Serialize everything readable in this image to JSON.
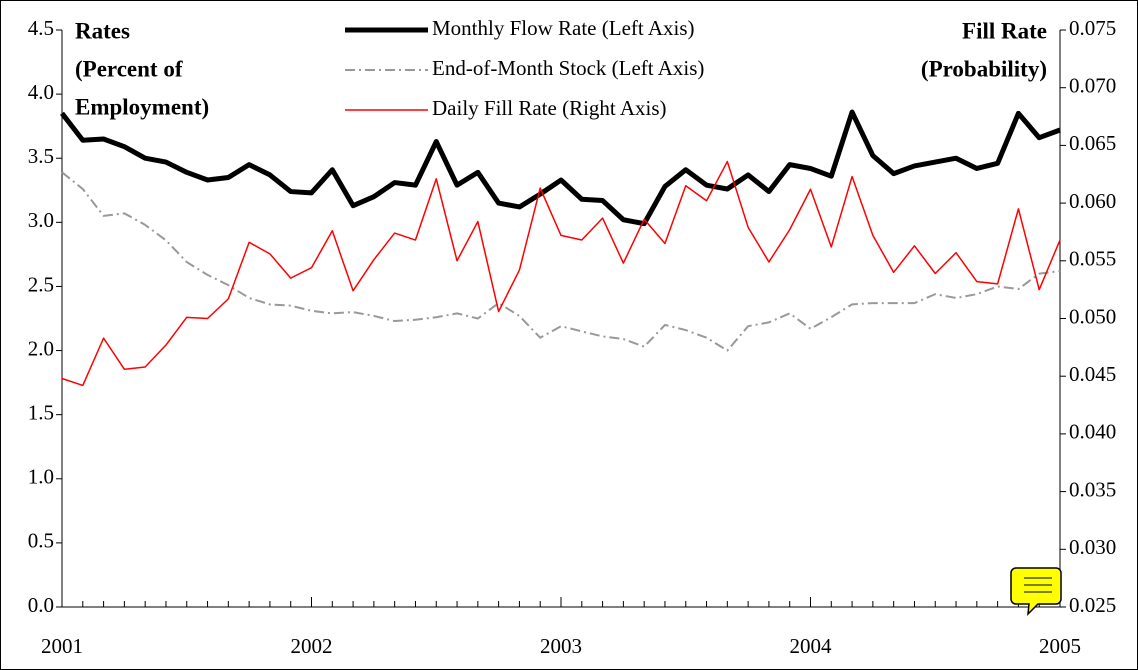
{
  "chart_data": {
    "type": "line",
    "ylabel": [
      "Rates",
      "(Percent of",
      "Employment)"
    ],
    "y2label": [
      "Fill Rate",
      "(Probability)"
    ],
    "categories": [
      "2001",
      null,
      null,
      null,
      null,
      null,
      null,
      null,
      null,
      null,
      null,
      null,
      "2002",
      null,
      null,
      null,
      null,
      null,
      null,
      null,
      null,
      null,
      null,
      null,
      "2003",
      null,
      null,
      null,
      null,
      null,
      null,
      null,
      null,
      null,
      null,
      null,
      "2004",
      null,
      null,
      null,
      null,
      null,
      null,
      null,
      null,
      null,
      null,
      null,
      "2005"
    ],
    "ylim": [
      0,
      4.5
    ],
    "yticks": [
      {
        "value": 0,
        "label": "0.0"
      },
      0.5,
      {
        "value": 1,
        "label": "1.0"
      },
      1.5,
      {
        "value": 2,
        "label": "2.0"
      },
      2.5,
      {
        "value": 3,
        "label": "3.0"
      },
      3.5,
      {
        "value": 4,
        "label": "4.0"
      },
      4.5
    ],
    "y2lim": [
      0.025,
      0.075
    ],
    "y2ticks": [
      0.025,
      {
        "value": 0.03,
        "label": "0.030"
      },
      0.035,
      {
        "value": 0.04,
        "label": "0.040"
      },
      0.045,
      {
        "value": 0.05,
        "label": "0.050"
      },
      0.055,
      {
        "value": 0.06,
        "label": "0.060"
      },
      0.065,
      {
        "value": 0.07,
        "label": "0.070"
      },
      0.075
    ],
    "series": [
      {
        "name": "Monthly Flow Rate (Left Axis)",
        "color": "#000000",
        "style": "solid",
        "width": 5,
        "values": [
          3.85,
          3.64,
          3.65,
          3.59,
          3.5,
          3.47,
          3.39,
          3.33,
          3.35,
          3.45,
          3.37,
          3.24,
          3.23,
          3.41,
          3.13,
          3.2,
          3.31,
          3.29,
          3.63,
          3.29,
          3.39,
          3.15,
          3.12,
          3.22,
          3.33,
          3.18,
          3.17,
          3.02,
          2.99,
          3.28,
          3.41,
          3.29,
          3.26,
          3.37,
          3.24,
          3.45,
          3.42,
          3.36,
          3.86,
          3.52,
          3.38,
          3.44,
          3.47,
          3.5,
          3.42,
          3.46,
          3.85,
          3.66,
          3.72
        ]
      },
      {
        "name": "End-of-Month Stock (Left Axis)",
        "color": "#999999",
        "style": "dashdot",
        "width": 2,
        "values": [
          3.39,
          3.26,
          3.05,
          3.07,
          2.98,
          2.86,
          2.69,
          2.59,
          2.51,
          2.41,
          2.36,
          2.35,
          2.31,
          2.29,
          2.3,
          2.27,
          2.23,
          2.24,
          2.26,
          2.29,
          2.25,
          2.37,
          2.27,
          2.1,
          2.19,
          2.15,
          2.11,
          2.09,
          2.03,
          2.2,
          2.16,
          2.1,
          2.0,
          2.19,
          2.22,
          2.29,
          2.17,
          2.26,
          2.36,
          2.37,
          2.37,
          2.37,
          2.44,
          2.41,
          2.44,
          2.5,
          2.48,
          2.6,
          2.62
        ]
      },
      {
        "name": "Daily Fill Rate (Right Axis)",
        "color": "#ff0000",
        "style": "solid",
        "width": 1.5,
        "axis": "y2",
        "values": [
          0.0448,
          0.0442,
          0.0483,
          0.0456,
          0.0458,
          0.0477,
          0.0501,
          0.05,
          0.0517,
          0.0566,
          0.0556,
          0.0535,
          0.0544,
          0.0576,
          0.0524,
          0.0551,
          0.0574,
          0.0568,
          0.0621,
          0.055,
          0.0584,
          0.0506,
          0.0542,
          0.0613,
          0.0572,
          0.0568,
          0.0587,
          0.0548,
          0.0586,
          0.0565,
          0.0615,
          0.0602,
          0.0636,
          0.0579,
          0.0549,
          0.0577,
          0.0612,
          0.0562,
          0.0623,
          0.0572,
          0.054,
          0.0563,
          0.0539,
          0.0557,
          0.0532,
          0.053,
          0.0595,
          0.0525,
          0.0568
        ]
      }
    ]
  }
}
